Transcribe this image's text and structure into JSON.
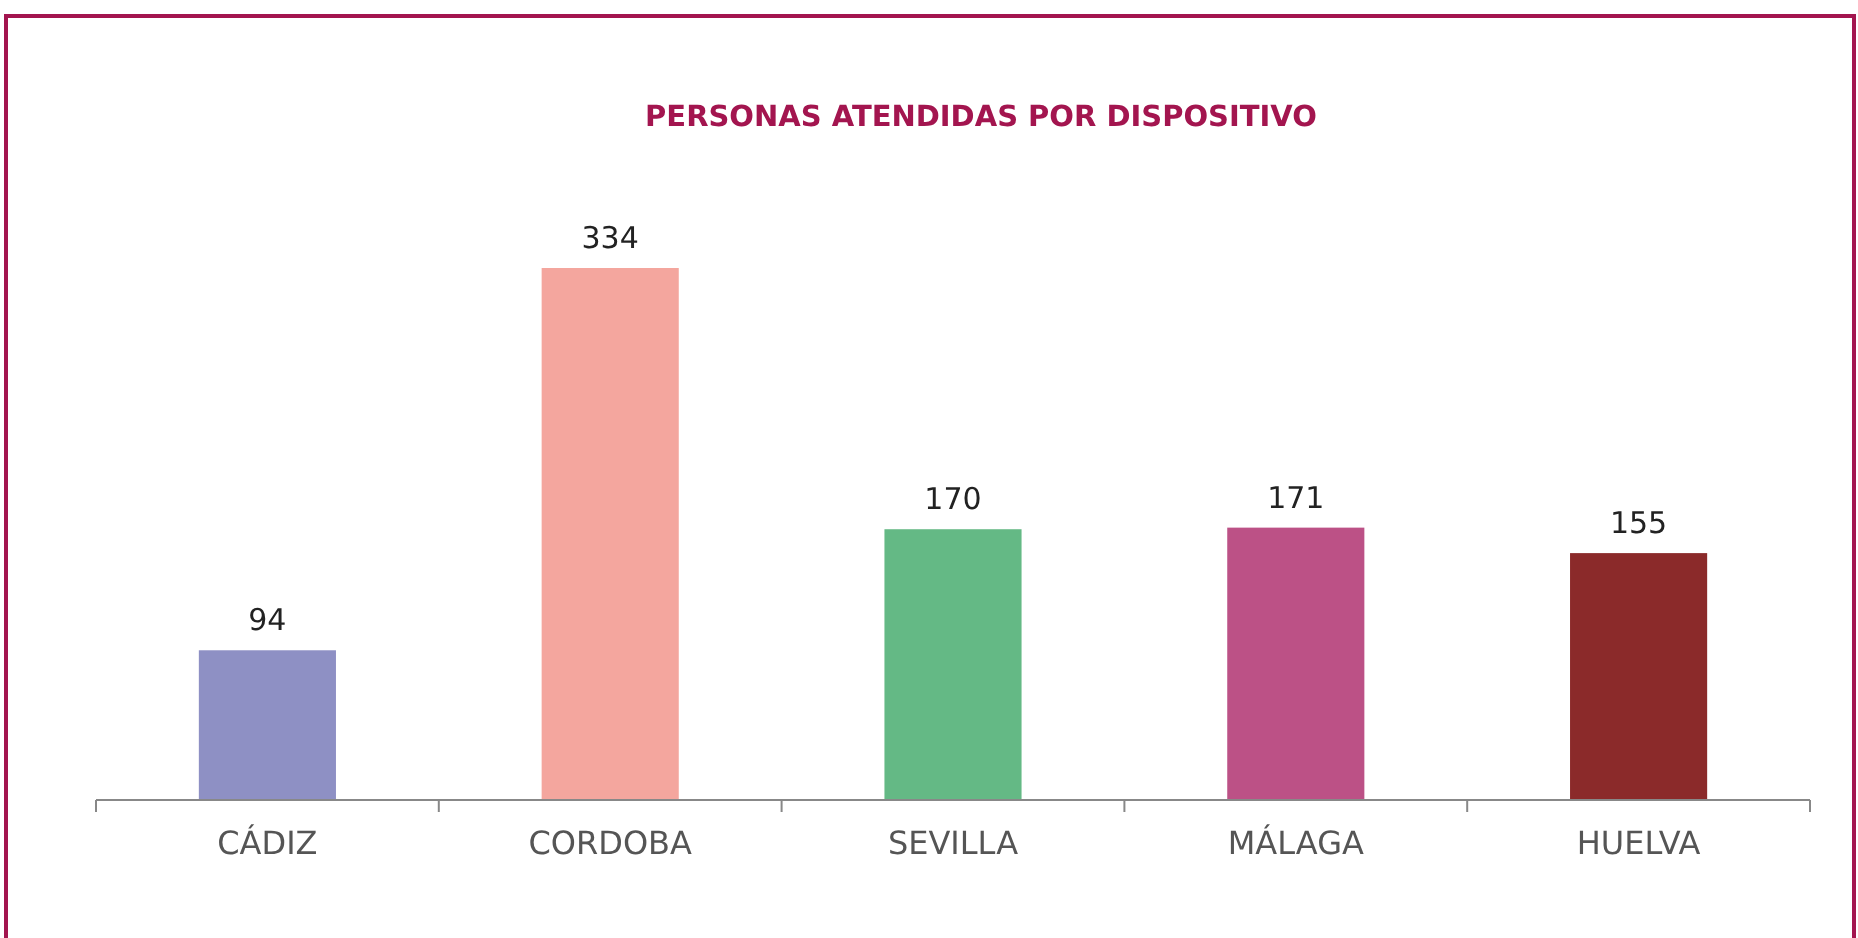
{
  "chart_data": {
    "type": "bar",
    "title": "PERSONAS ATENDIDAS POR DISPOSITIVO",
    "categories": [
      "CÁDIZ",
      "CORDOBA",
      "SEVILLA",
      "MÁLAGA",
      "HUELVA"
    ],
    "values": [
      94,
      334,
      170,
      171,
      155
    ],
    "colors": [
      "#8e90c4",
      "#f4a69e",
      "#64b985",
      "#bc5186",
      "#8b2a2a"
    ],
    "data_labels": true
  }
}
